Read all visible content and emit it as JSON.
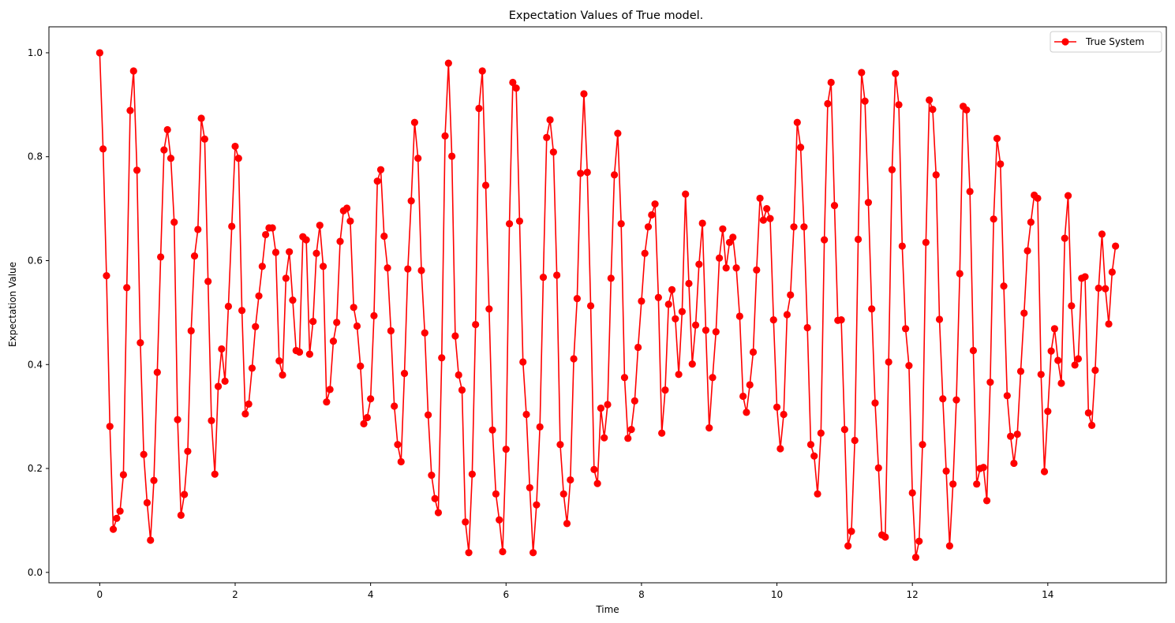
{
  "chart_data": {
    "type": "line",
    "title": "Expectation Values of True model.",
    "xlabel": "Time",
    "ylabel": "Expectation Value",
    "xlim": [
      -0.75,
      15.75
    ],
    "ylim": [
      -0.02,
      1.05
    ],
    "xticks": [
      0,
      2,
      4,
      6,
      8,
      10,
      12,
      14
    ],
    "xtick_labels": [
      "0",
      "2",
      "4",
      "6",
      "8",
      "10",
      "12",
      "14"
    ],
    "yticks": [
      0.0,
      0.2,
      0.4,
      0.6,
      0.8,
      1.0
    ],
    "ytick_labels": [
      "0.0",
      "0.2",
      "0.4",
      "0.6",
      "0.8",
      "1.0"
    ],
    "grid": false,
    "legend_position": "top-right",
    "series": [
      {
        "name": "True System",
        "color": "#ff0000",
        "marker": "circle",
        "x_start": 0,
        "x_step": 0.05,
        "values": [
          1.0,
          0.815,
          0.571,
          0.281,
          0.083,
          0.104,
          0.118,
          0.188,
          0.548,
          0.889,
          0.965,
          0.774,
          0.442,
          0.227,
          0.134,
          0.062,
          0.177,
          0.385,
          0.607,
          0.813,
          0.852,
          0.797,
          0.674,
          0.294,
          0.11,
          0.15,
          0.233,
          0.465,
          0.609,
          0.66,
          0.874,
          0.834,
          0.56,
          0.292,
          0.189,
          0.358,
          0.43,
          0.368,
          0.512,
          0.666,
          0.82,
          0.797,
          0.504,
          0.305,
          0.324,
          0.393,
          0.473,
          0.532,
          0.589,
          0.65,
          0.663,
          0.663,
          0.616,
          0.407,
          0.38,
          0.566,
          0.617,
          0.524,
          0.427,
          0.424,
          0.646,
          0.64,
          0.42,
          0.483,
          0.614,
          0.668,
          0.589,
          0.328,
          0.352,
          0.445,
          0.481,
          0.637,
          0.696,
          0.701,
          0.676,
          0.51,
          0.474,
          0.397,
          0.286,
          0.298,
          0.334,
          0.494,
          0.753,
          0.775,
          0.647,
          0.586,
          0.465,
          0.32,
          0.246,
          0.213,
          0.383,
          0.584,
          0.715,
          0.866,
          0.797,
          0.581,
          0.461,
          0.303,
          0.187,
          0.142,
          0.115,
          0.413,
          0.84,
          0.98,
          0.801,
          0.455,
          0.38,
          0.351,
          0.097,
          0.038,
          0.189,
          0.477,
          0.893,
          0.965,
          0.745,
          0.507,
          0.274,
          0.151,
          0.101,
          0.04,
          0.237,
          0.671,
          0.943,
          0.932,
          0.676,
          0.405,
          0.304,
          0.163,
          0.038,
          0.13,
          0.28,
          0.568,
          0.837,
          0.871,
          0.809,
          0.572,
          0.246,
          0.151,
          0.094,
          0.178,
          0.411,
          0.527,
          0.768,
          0.921,
          0.77,
          0.513,
          0.198,
          0.171,
          0.316,
          0.259,
          0.323,
          0.566,
          0.765,
          0.845,
          0.671,
          0.375,
          0.258,
          0.275,
          0.33,
          0.433,
          0.522,
          0.614,
          0.665,
          0.688,
          0.709,
          0.529,
          0.268,
          0.351,
          0.516,
          0.544,
          0.488,
          0.381,
          0.502,
          0.728,
          0.556,
          0.401,
          0.476,
          0.593,
          0.672,
          0.466,
          0.278,
          0.375,
          0.463,
          0.605,
          0.661,
          0.586,
          0.635,
          0.645,
          0.586,
          0.493,
          0.339,
          0.308,
          0.361,
          0.424,
          0.582,
          0.72,
          0.678,
          0.7,
          0.681,
          0.486,
          0.318,
          0.238,
          0.304,
          0.496,
          0.534,
          0.665,
          0.866,
          0.818,
          0.665,
          0.471,
          0.246,
          0.224,
          0.151,
          0.268,
          0.64,
          0.902,
          0.943,
          0.706,
          0.485,
          0.486,
          0.275,
          0.051,
          0.079,
          0.254,
          0.641,
          0.962,
          0.907,
          0.712,
          0.507,
          0.326,
          0.201,
          0.072,
          0.068,
          0.405,
          0.775,
          0.96,
          0.9,
          0.628,
          0.469,
          0.398,
          0.153,
          0.029,
          0.06,
          0.246,
          0.635,
          0.909,
          0.891,
          0.765,
          0.487,
          0.334,
          0.195,
          0.051,
          0.17,
          0.332,
          0.575,
          0.897,
          0.89,
          0.733,
          0.427,
          0.17,
          0.2,
          0.202,
          0.138,
          0.366,
          0.68,
          0.835,
          0.786,
          0.551,
          0.34,
          0.262,
          0.21,
          0.266,
          0.387,
          0.499,
          0.619,
          0.674,
          0.726,
          0.72,
          0.381,
          0.194,
          0.31,
          0.426,
          0.469,
          0.408,
          0.364,
          0.643,
          0.725,
          0.513,
          0.399,
          0.411,
          0.566,
          0.569,
          0.307,
          0.283,
          0.389,
          0.547,
          0.651,
          0.546,
          0.478,
          0.578,
          0.628
        ]
      }
    ]
  }
}
